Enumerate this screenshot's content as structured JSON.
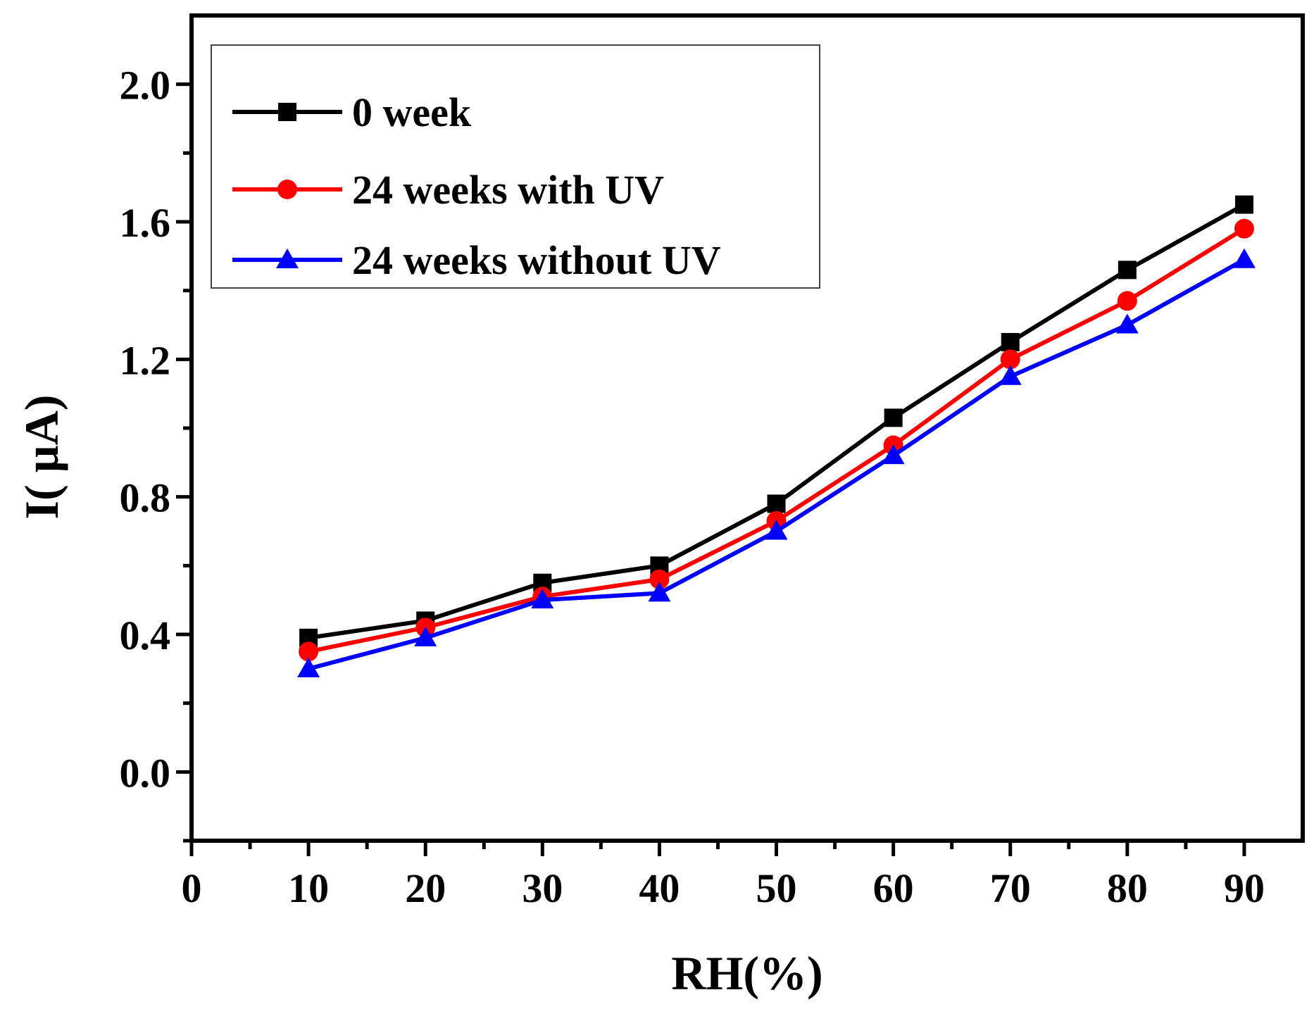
{
  "chart_data": {
    "type": "line",
    "title": "",
    "xlabel": "RH(%)",
    "ylabel": "I( µA)",
    "xlim": [
      0,
      95
    ],
    "ylim": [
      -0.2,
      2.2
    ],
    "x_ticks": [
      0,
      10,
      20,
      30,
      40,
      50,
      60,
      70,
      80,
      90
    ],
    "y_ticks": [
      0.0,
      0.4,
      0.8,
      1.2,
      1.6,
      2.0
    ],
    "x_tick_labels": [
      "0",
      "10",
      "20",
      "30",
      "40",
      "50",
      "60",
      "70",
      "80",
      "90"
    ],
    "y_tick_labels": [
      "0.0",
      "0.4",
      "0.8",
      "1.2",
      "1.6",
      "2.0"
    ],
    "grid": false,
    "legend_position": "top-left",
    "x": [
      10,
      20,
      30,
      40,
      50,
      60,
      70,
      80,
      90
    ],
    "series": [
      {
        "name": "0 week",
        "color": "#000000",
        "marker": "square",
        "values": [
          0.39,
          0.44,
          0.55,
          0.6,
          0.78,
          1.03,
          1.25,
          1.46,
          1.65
        ]
      },
      {
        "name": "24 weeks with UV",
        "color": "#ff0000",
        "marker": "circle",
        "values": [
          0.35,
          0.42,
          0.51,
          0.56,
          0.73,
          0.95,
          1.2,
          1.37,
          1.58
        ]
      },
      {
        "name": "24 weeks without UV",
        "color": "#0000ff",
        "marker": "triangle",
        "values": [
          0.3,
          0.39,
          0.5,
          0.52,
          0.7,
          0.92,
          1.15,
          1.3,
          1.49
        ]
      }
    ]
  }
}
